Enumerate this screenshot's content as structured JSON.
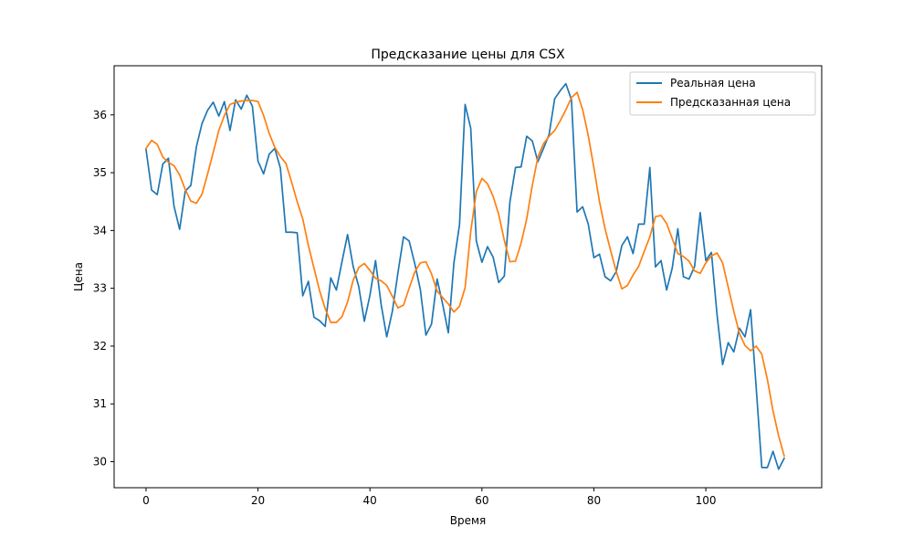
{
  "chart_data": {
    "type": "line",
    "title": "Предсказание цены для CSX",
    "xlabel": "Время",
    "ylabel": "Цена",
    "xlim": [
      -5.7,
      120.7
    ],
    "ylim": [
      29.55,
      36.85
    ],
    "xticks": [
      0,
      20,
      40,
      60,
      80,
      100
    ],
    "yticks": [
      30,
      31,
      32,
      33,
      34,
      35,
      36
    ],
    "grid": false,
    "legend_position": "upper right",
    "series": [
      {
        "name": "Реальная цена",
        "color": "#1f77b4",
        "x": [
          0,
          1,
          2,
          3,
          4,
          5,
          6,
          7,
          8,
          9,
          10,
          11,
          12,
          13,
          14,
          15,
          16,
          17,
          18,
          19,
          20,
          21,
          22,
          23,
          24,
          25,
          26,
          27,
          28,
          29,
          30,
          31,
          32,
          33,
          34,
          35,
          36,
          37,
          38,
          39,
          40,
          41,
          42,
          43,
          44,
          45,
          46,
          47,
          48,
          49,
          50,
          51,
          52,
          53,
          54,
          55,
          56,
          57,
          58,
          59,
          60,
          61,
          62,
          63,
          64,
          65,
          66,
          67,
          68,
          69,
          70,
          71,
          72,
          73,
          74,
          75,
          76,
          77,
          78,
          79,
          80,
          81,
          82,
          83,
          84,
          85,
          86,
          87,
          88,
          89,
          90,
          91,
          92,
          93,
          94,
          95,
          96,
          97,
          98,
          99,
          100,
          101,
          102,
          103,
          104,
          105,
          106,
          107,
          108,
          109,
          110,
          111,
          112,
          113,
          114
        ],
        "values": [
          35.4,
          34.7,
          34.62,
          35.15,
          35.25,
          34.42,
          34.02,
          34.68,
          34.78,
          35.45,
          35.85,
          36.08,
          36.22,
          35.98,
          36.23,
          35.73,
          36.26,
          36.1,
          36.34,
          36.15,
          35.2,
          34.98,
          35.32,
          35.42,
          35.08,
          33.97,
          33.97,
          33.96,
          32.87,
          33.12,
          32.5,
          32.44,
          32.34,
          33.18,
          32.97,
          33.46,
          33.93,
          33.38,
          33.03,
          32.43,
          32.88,
          33.48,
          32.72,
          32.16,
          32.6,
          33.27,
          33.89,
          33.82,
          33.43,
          32.98,
          32.19,
          32.38,
          33.16,
          32.72,
          32.23,
          33.44,
          34.1,
          36.18,
          35.77,
          33.82,
          33.45,
          33.72,
          33.54,
          33.1,
          33.21,
          34.49,
          35.09,
          35.1,
          35.63,
          35.55,
          35.19,
          35.42,
          35.66,
          36.28,
          36.42,
          36.54,
          36.26,
          34.32,
          34.41,
          34.11,
          33.53,
          33.59,
          33.2,
          33.13,
          33.29,
          33.74,
          33.89,
          33.6,
          34.11,
          34.11,
          35.09,
          33.37,
          33.48,
          32.97,
          33.35,
          34.03,
          33.2,
          33.16,
          33.38,
          34.31,
          33.48,
          33.62,
          32.55,
          31.68,
          32.06,
          31.9,
          32.31,
          32.16,
          32.63,
          31.28,
          29.9,
          29.9,
          30.18,
          29.87,
          30.06
        ]
      },
      {
        "name": "Предсказанная цена",
        "color": "#ff7f0e",
        "x": [
          0,
          1,
          2,
          3,
          4,
          5,
          6,
          7,
          8,
          9,
          10,
          11,
          12,
          13,
          14,
          15,
          16,
          17,
          18,
          19,
          20,
          21,
          22,
          23,
          24,
          25,
          26,
          27,
          28,
          29,
          30,
          31,
          32,
          33,
          34,
          35,
          36,
          37,
          38,
          39,
          40,
          41,
          42,
          43,
          44,
          45,
          46,
          47,
          48,
          49,
          50,
          51,
          52,
          53,
          54,
          55,
          56,
          57,
          58,
          59,
          60,
          61,
          62,
          63,
          64,
          65,
          66,
          67,
          68,
          69,
          70,
          71,
          72,
          73,
          74,
          75,
          76,
          77,
          78,
          79,
          80,
          81,
          82,
          83,
          84,
          85,
          86,
          87,
          88,
          89,
          90,
          91,
          92,
          93,
          94,
          95,
          96,
          97,
          98,
          99,
          100,
          101,
          102,
          103,
          104,
          105,
          106,
          107,
          108,
          109,
          110,
          111,
          112,
          113,
          114
        ],
        "values": [
          35.42,
          35.56,
          35.49,
          35.27,
          35.18,
          35.12,
          34.96,
          34.71,
          34.51,
          34.47,
          34.63,
          34.98,
          35.35,
          35.73,
          35.99,
          36.18,
          36.22,
          36.24,
          36.25,
          36.25,
          36.23,
          35.99,
          35.68,
          35.44,
          35.28,
          35.16,
          34.84,
          34.5,
          34.2,
          33.74,
          33.35,
          32.96,
          32.65,
          32.41,
          32.41,
          32.51,
          32.76,
          33.14,
          33.36,
          33.43,
          33.31,
          33.17,
          33.13,
          33.05,
          32.86,
          32.66,
          32.71,
          33.0,
          33.28,
          33.44,
          33.46,
          33.25,
          32.95,
          32.84,
          32.73,
          32.59,
          32.69,
          33.01,
          33.98,
          34.67,
          34.9,
          34.81,
          34.59,
          34.28,
          33.83,
          33.46,
          33.47,
          33.78,
          34.2,
          34.78,
          35.27,
          35.5,
          35.63,
          35.73,
          35.9,
          36.09,
          36.3,
          36.39,
          36.09,
          35.64,
          35.09,
          34.5,
          34.03,
          33.65,
          33.29,
          32.99,
          33.05,
          33.23,
          33.38,
          33.64,
          33.89,
          34.24,
          34.26,
          34.12,
          33.86,
          33.6,
          33.55,
          33.47,
          33.3,
          33.26,
          33.44,
          33.56,
          33.61,
          33.44,
          33.02,
          32.6,
          32.22,
          32.01,
          31.92,
          32.0,
          31.86,
          31.42,
          30.88,
          30.45,
          30.1
        ]
      }
    ]
  }
}
